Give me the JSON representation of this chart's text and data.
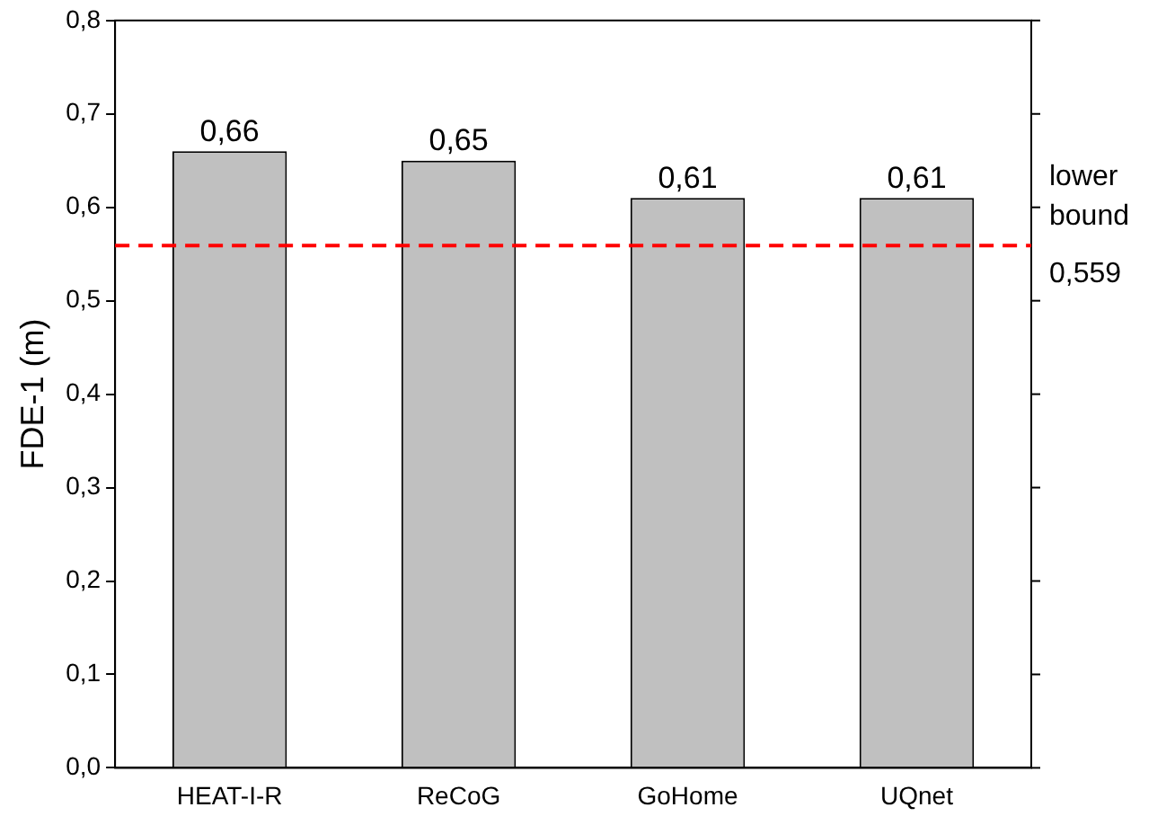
{
  "chart_data": {
    "type": "bar",
    "ylabel": "FDE-1 (m)",
    "categories": [
      "HEAT-I-R",
      "ReCoG",
      "GoHome",
      "UQnet"
    ],
    "values": [
      0.66,
      0.65,
      0.61,
      0.61
    ],
    "value_labels": [
      "0,66",
      "0,65",
      "0,61",
      "0,61"
    ],
    "color": "#c0c0c0",
    "ylim": [
      0,
      0.8
    ],
    "yticks": [
      {
        "value": 0,
        "label": "0,0"
      },
      {
        "value": 0.1,
        "label": "0,1"
      },
      {
        "value": 0.2,
        "label": "0,2"
      },
      {
        "value": 0.3,
        "label": "0,3"
      },
      {
        "value": 0.4,
        "label": "0,4"
      },
      {
        "value": 0.5,
        "label": "0,5"
      },
      {
        "value": 0.6,
        "label": "0,6"
      },
      {
        "value": 0.7,
        "label": "0,7"
      },
      {
        "value": 0.8,
        "label": "0,8"
      }
    ],
    "ref_lines": [
      {
        "axis": "y",
        "value": 0.559,
        "label": "lower bound 0,559",
        "color": "#ff0000",
        "line_style": "dashed"
      }
    ],
    "grid": false,
    "legend": false
  }
}
